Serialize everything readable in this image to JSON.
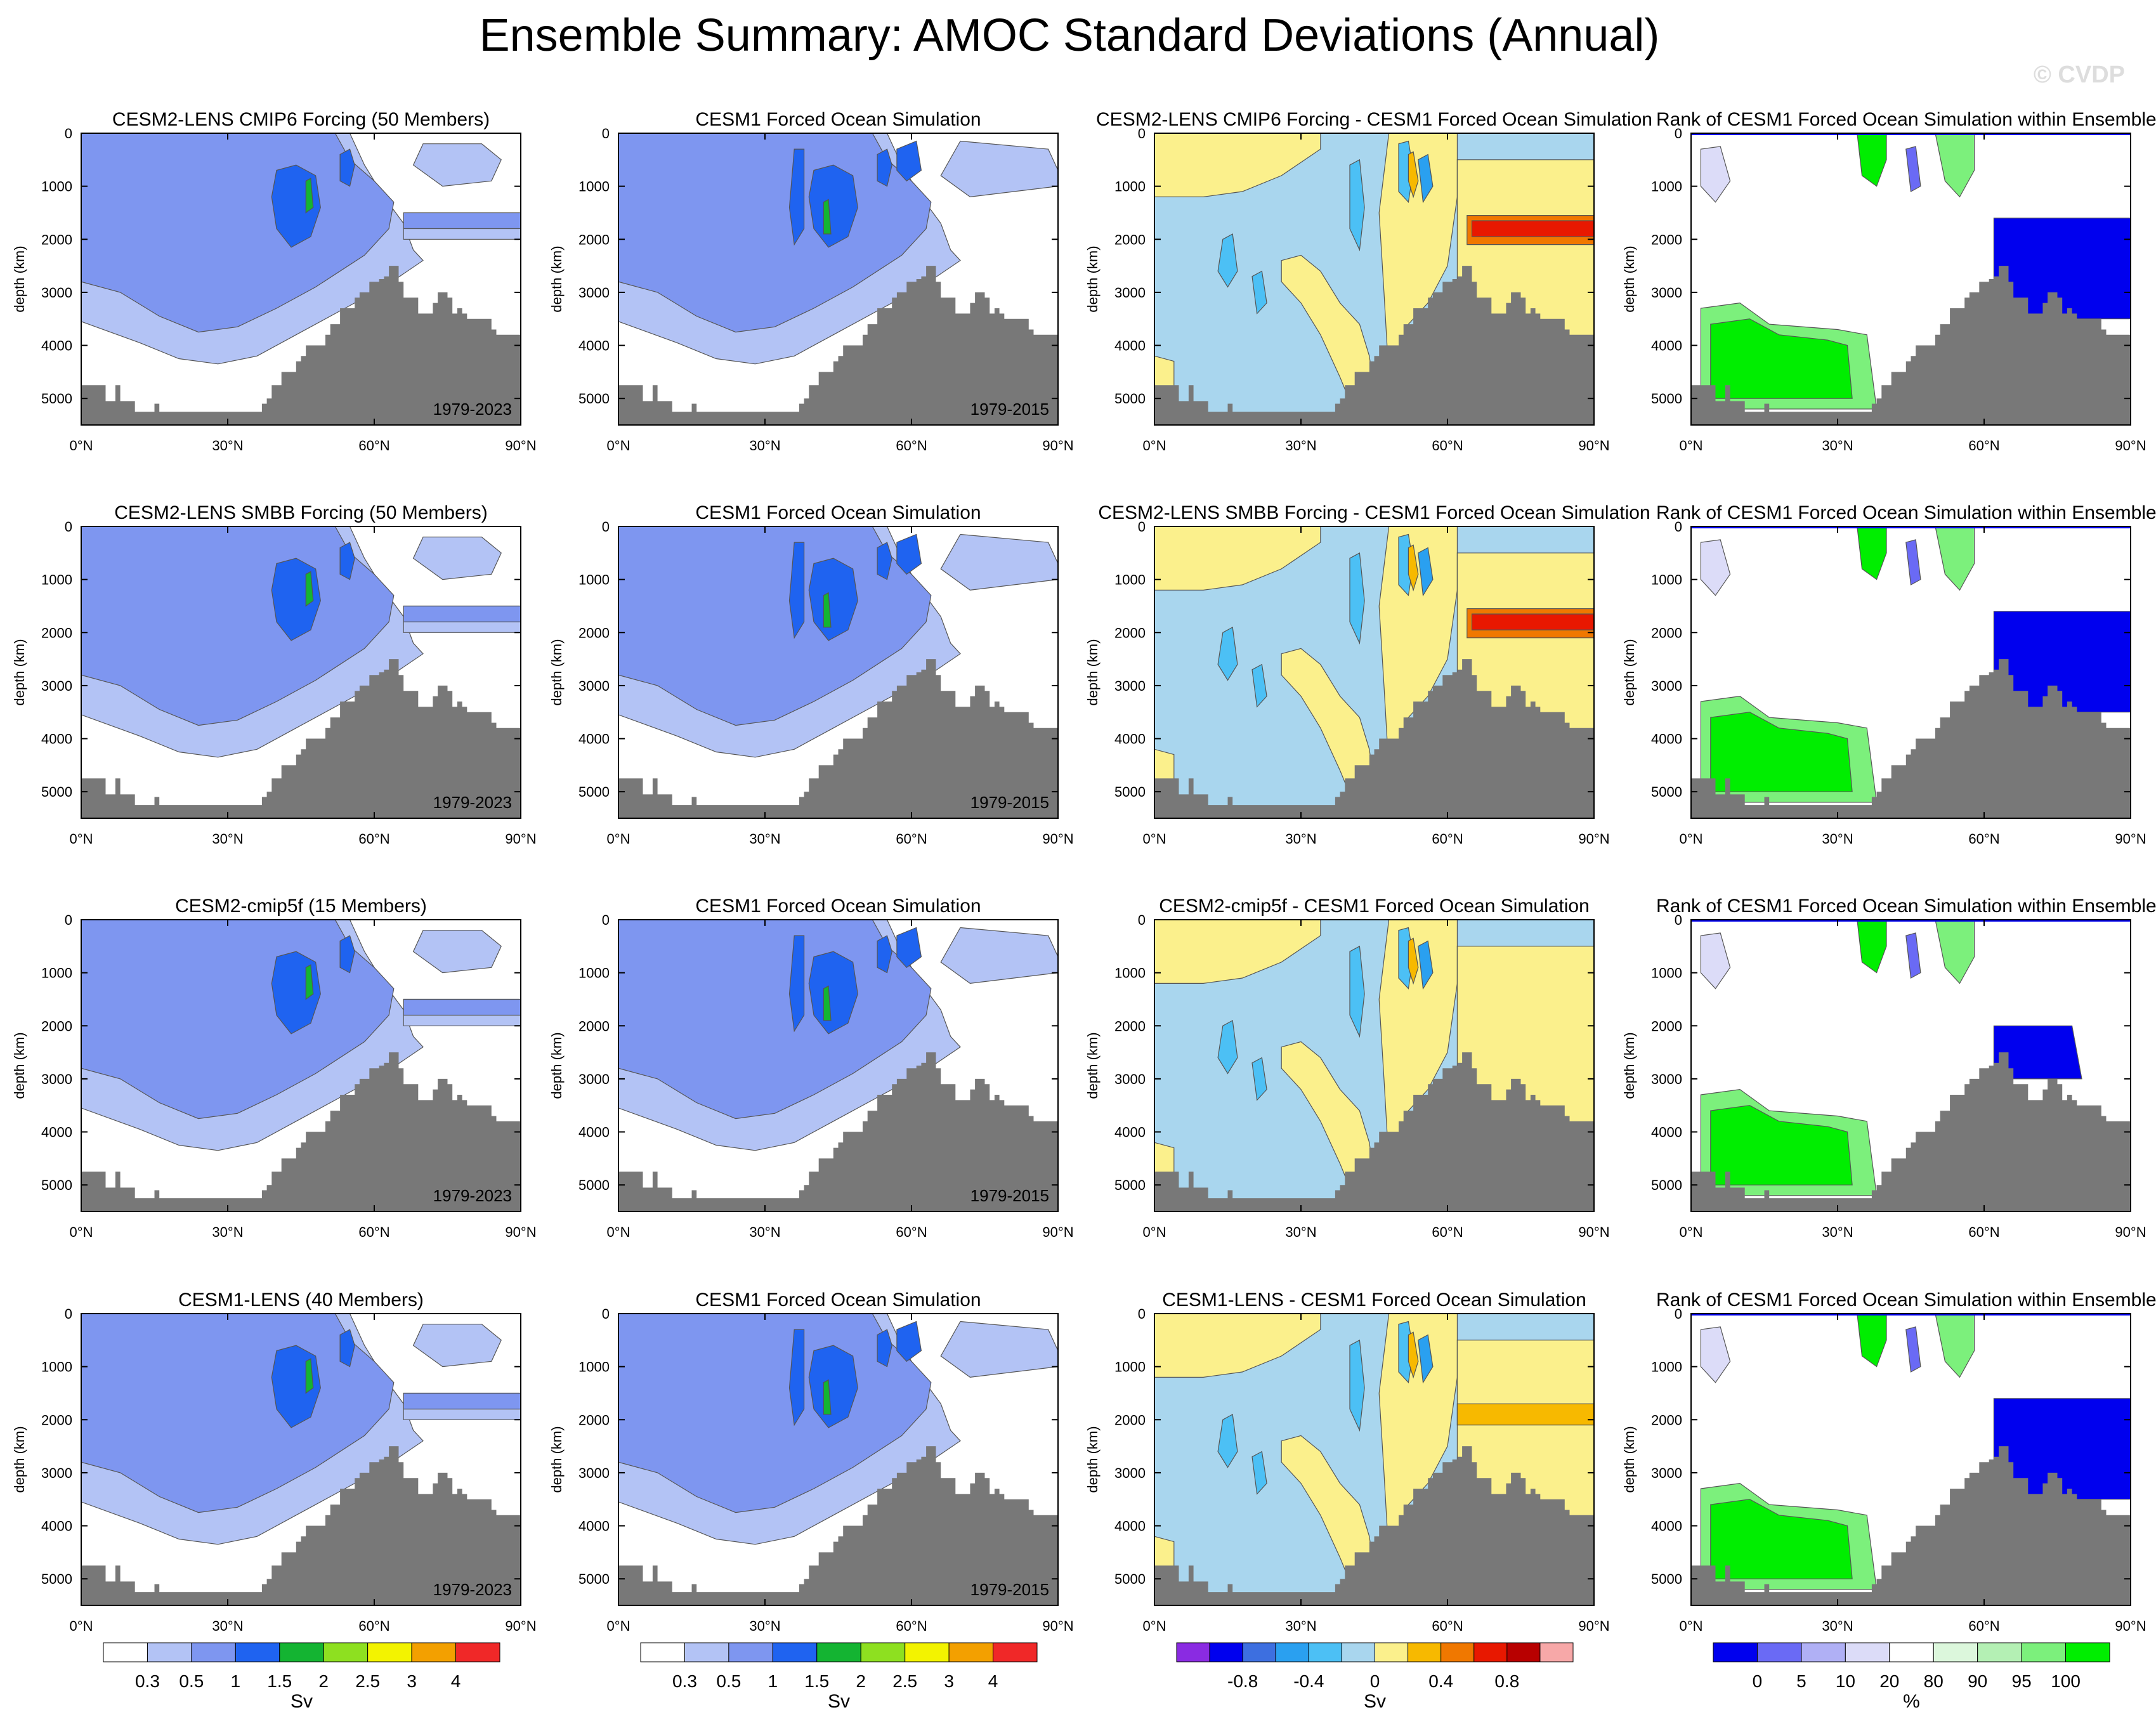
{
  "title": "Ensemble Summary: AMOC Standard Deviations (Annual)",
  "watermark": "© CVDP",
  "axes": {
    "ylabel": "depth (km)",
    "yticks": [
      "0",
      "1000",
      "2000",
      "3000",
      "4000",
      "5000"
    ],
    "xticks": [
      "0°N",
      "30°N",
      "60°N",
      "90°N"
    ]
  },
  "chart_data": [
    {
      "type": "heatmap",
      "row": 0,
      "col": 0,
      "title": "CESM2-LENS CMIP6 Forcing (50 Members)",
      "period": "1979-2023",
      "xlabel": "",
      "ylabel": "depth (km)",
      "ylim": [
        0,
        5500
      ],
      "xlim": [
        0,
        90
      ]
    },
    {
      "type": "heatmap",
      "row": 0,
      "col": 1,
      "title": "CESM1 Forced Ocean Simulation",
      "period": "1979-2015",
      "xlabel": "",
      "ylabel": "depth (km)",
      "ylim": [
        0,
        5500
      ],
      "xlim": [
        0,
        90
      ]
    },
    {
      "type": "heatmap",
      "row": 0,
      "col": 2,
      "title": "CESM2-LENS CMIP6 Forcing - CESM1 Forced Ocean Simulation",
      "period": "",
      "xlabel": "",
      "ylabel": "depth (km)",
      "ylim": [
        0,
        5500
      ],
      "xlim": [
        0,
        90
      ]
    },
    {
      "type": "heatmap",
      "row": 0,
      "col": 3,
      "title": "Rank of CESM1 Forced Ocean Simulation within Ensemble",
      "period": "",
      "xlabel": "",
      "ylabel": "depth (km)",
      "ylim": [
        0,
        5500
      ],
      "xlim": [
        0,
        90
      ]
    },
    {
      "type": "heatmap",
      "row": 1,
      "col": 0,
      "title": "CESM2-LENS SMBB Forcing (50 Members)",
      "period": "1979-2023",
      "xlabel": "",
      "ylabel": "depth (km)",
      "ylim": [
        0,
        5500
      ],
      "xlim": [
        0,
        90
      ]
    },
    {
      "type": "heatmap",
      "row": 1,
      "col": 1,
      "title": "CESM1 Forced Ocean Simulation",
      "period": "1979-2015",
      "xlabel": "",
      "ylabel": "depth (km)",
      "ylim": [
        0,
        5500
      ],
      "xlim": [
        0,
        90
      ]
    },
    {
      "type": "heatmap",
      "row": 1,
      "col": 2,
      "title": "CESM2-LENS SMBB Forcing - CESM1 Forced Ocean Simulation",
      "period": "",
      "xlabel": "",
      "ylabel": "depth (km)",
      "ylim": [
        0,
        5500
      ],
      "xlim": [
        0,
        90
      ]
    },
    {
      "type": "heatmap",
      "row": 1,
      "col": 3,
      "title": "Rank of CESM1 Forced Ocean Simulation within Ensemble",
      "period": "",
      "xlabel": "",
      "ylabel": "depth (km)",
      "ylim": [
        0,
        5500
      ],
      "xlim": [
        0,
        90
      ]
    },
    {
      "type": "heatmap",
      "row": 2,
      "col": 0,
      "title": "CESM2-cmip5f (15 Members)",
      "period": "1979-2023",
      "xlabel": "",
      "ylabel": "depth (km)",
      "ylim": [
        0,
        5500
      ],
      "xlim": [
        0,
        90
      ]
    },
    {
      "type": "heatmap",
      "row": 2,
      "col": 1,
      "title": "CESM1 Forced Ocean Simulation",
      "period": "1979-2015",
      "xlabel": "",
      "ylabel": "depth (km)",
      "ylim": [
        0,
        5500
      ],
      "xlim": [
        0,
        90
      ]
    },
    {
      "type": "heatmap",
      "row": 2,
      "col": 2,
      "title": "CESM2-cmip5f - CESM1 Forced Ocean Simulation",
      "period": "",
      "xlabel": "",
      "ylabel": "depth (km)",
      "ylim": [
        0,
        5500
      ],
      "xlim": [
        0,
        90
      ]
    },
    {
      "type": "heatmap",
      "row": 2,
      "col": 3,
      "title": "Rank of CESM1 Forced Ocean Simulation within Ensemble",
      "period": "",
      "xlabel": "",
      "ylabel": "depth (km)",
      "ylim": [
        0,
        5500
      ],
      "xlim": [
        0,
        90
      ]
    },
    {
      "type": "heatmap",
      "row": 3,
      "col": 0,
      "title": "CESM1-LENS (40 Members)",
      "period": "1979-2023",
      "xlabel": "",
      "ylabel": "depth (km)",
      "ylim": [
        0,
        5500
      ],
      "xlim": [
        0,
        90
      ]
    },
    {
      "type": "heatmap",
      "row": 3,
      "col": 1,
      "title": "CESM1 Forced Ocean Simulation",
      "period": "1979-2015",
      "xlabel": "",
      "ylabel": "depth (km)",
      "ylim": [
        0,
        5500
      ],
      "xlim": [
        0,
        90
      ]
    },
    {
      "type": "heatmap",
      "row": 3,
      "col": 2,
      "title": "CESM1-LENS - CESM1 Forced Ocean Simulation",
      "period": "",
      "xlabel": "",
      "ylabel": "depth (km)",
      "ylim": [
        0,
        5500
      ],
      "xlim": [
        0,
        90
      ]
    },
    {
      "type": "heatmap",
      "row": 3,
      "col": 3,
      "title": "Rank of CESM1 Forced Ocean Simulation within Ensemble",
      "period": "",
      "xlabel": "",
      "ylabel": "depth (km)",
      "ylim": [
        0,
        5500
      ],
      "xlim": [
        0,
        90
      ]
    }
  ],
  "colorbars": [
    {
      "col": 0,
      "unit": "Sv",
      "labels": [
        "0.3",
        "0.5",
        "1",
        "1.5",
        "2",
        "2.5",
        "3",
        "4"
      ],
      "colors": [
        "#ffffff",
        "#b3c3f5",
        "#7e96f0",
        "#1f63f0",
        "#14b432",
        "#8ee020",
        "#f3f300",
        "#f3a000",
        "#f02828"
      ]
    },
    {
      "col": 1,
      "unit": "Sv",
      "labels": [
        "0.3",
        "0.5",
        "1",
        "1.5",
        "2",
        "2.5",
        "3",
        "4"
      ],
      "colors": [
        "#ffffff",
        "#b3c3f5",
        "#7e96f0",
        "#1f63f0",
        "#14b432",
        "#8ee020",
        "#f3f300",
        "#f3a000",
        "#f02828"
      ]
    },
    {
      "col": 2,
      "unit": "Sv",
      "labels": [
        "-0.8",
        "-0.4",
        "0",
        "0.4",
        "0.8"
      ],
      "colors": [
        "#8a2be2",
        "#0000ee",
        "#3d6fe0",
        "#2aa0f0",
        "#4cc0f5",
        "#a9d6ee",
        "#fbf08c",
        "#f7b900",
        "#f07800",
        "#e81800",
        "#b80000",
        "#f7a8a8"
      ]
    },
    {
      "col": 3,
      "unit": "%",
      "labels": [
        "0",
        "5",
        "10",
        "20",
        "80",
        "90",
        "95",
        "100"
      ],
      "colors": [
        "#0000ee",
        "#6a6af5",
        "#b0b0f5",
        "#dcdcf8",
        "#ffffff",
        "#dcf7dc",
        "#b4f0b4",
        "#7cf07c",
        "#00ee00"
      ]
    }
  ]
}
